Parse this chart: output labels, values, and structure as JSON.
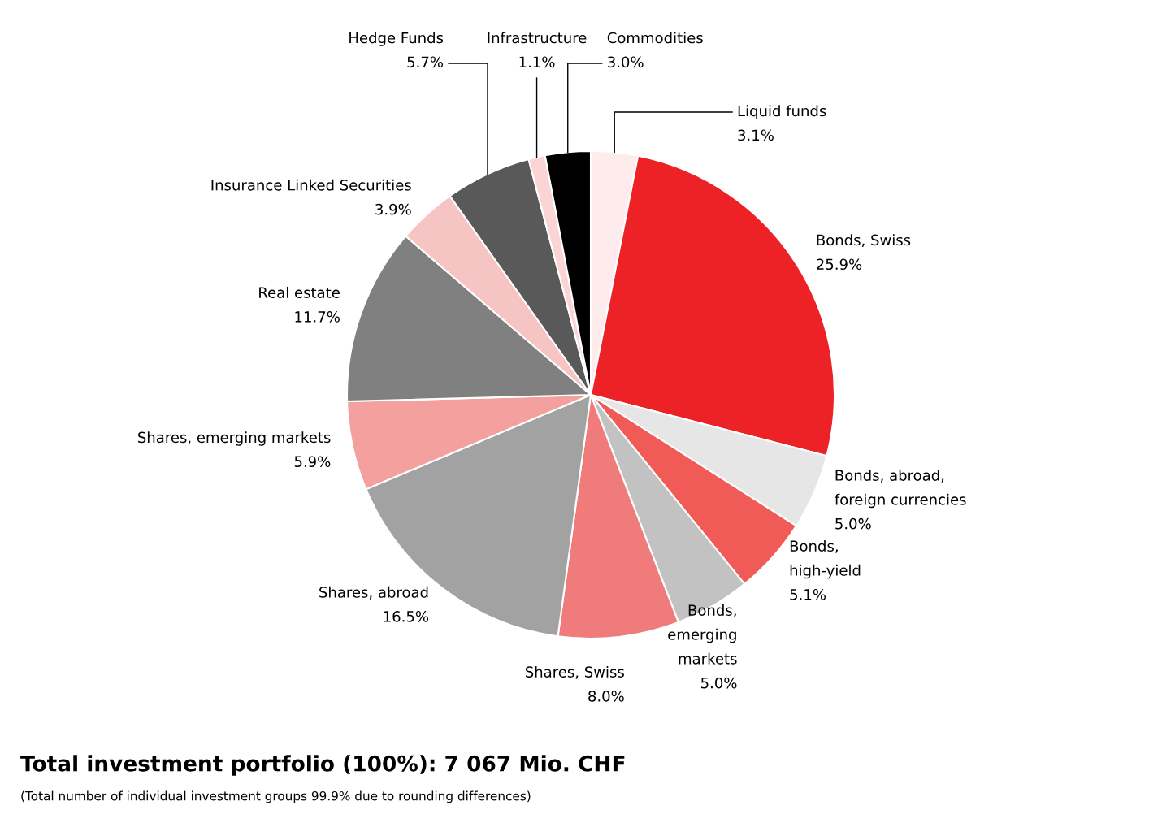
{
  "chart_data": {
    "type": "pie",
    "title": "Total investment portfolio (100%): 7 067 Mio. CHF",
    "annotations": [
      "(Total number of individual investment groups 99.9% due to rounding differences)"
    ],
    "categories": [
      "Liquid funds",
      "Bonds, Swiss",
      "Bonds, abroad,\nforeign currencies",
      "Bonds,\nhigh-yield",
      "Bonds,\nemerging\nmarkets",
      "Shares, Swiss",
      "Shares, abroad",
      "Shares, emerging markets",
      "Real estate",
      "Insurance Linked Securities",
      "Hedge Funds",
      "Infrastructure",
      "Commodities"
    ],
    "values": [
      3.1,
      25.9,
      5.0,
      5.1,
      5.0,
      8.0,
      16.5,
      5.9,
      11.7,
      3.9,
      5.7,
      1.1,
      3.0
    ],
    "value_labels": [
      "3.1%",
      "25.9%",
      "5.0%",
      "5.1%",
      "5.0%",
      "8.0%",
      "16.5%",
      "5.9%",
      "11.7%",
      "3.9%",
      "5.7%",
      "1.1%",
      "3.0%"
    ],
    "colors": [
      "#fdeceb",
      "#ec2227",
      "#e6e6e6",
      "#f05a57",
      "#c2c2c2",
      "#f07b7b",
      "#a2a2a2",
      "#f4a09e",
      "#808080",
      "#f7c4c4",
      "#595959",
      "#fbd5d5",
      "#000000"
    ]
  }
}
